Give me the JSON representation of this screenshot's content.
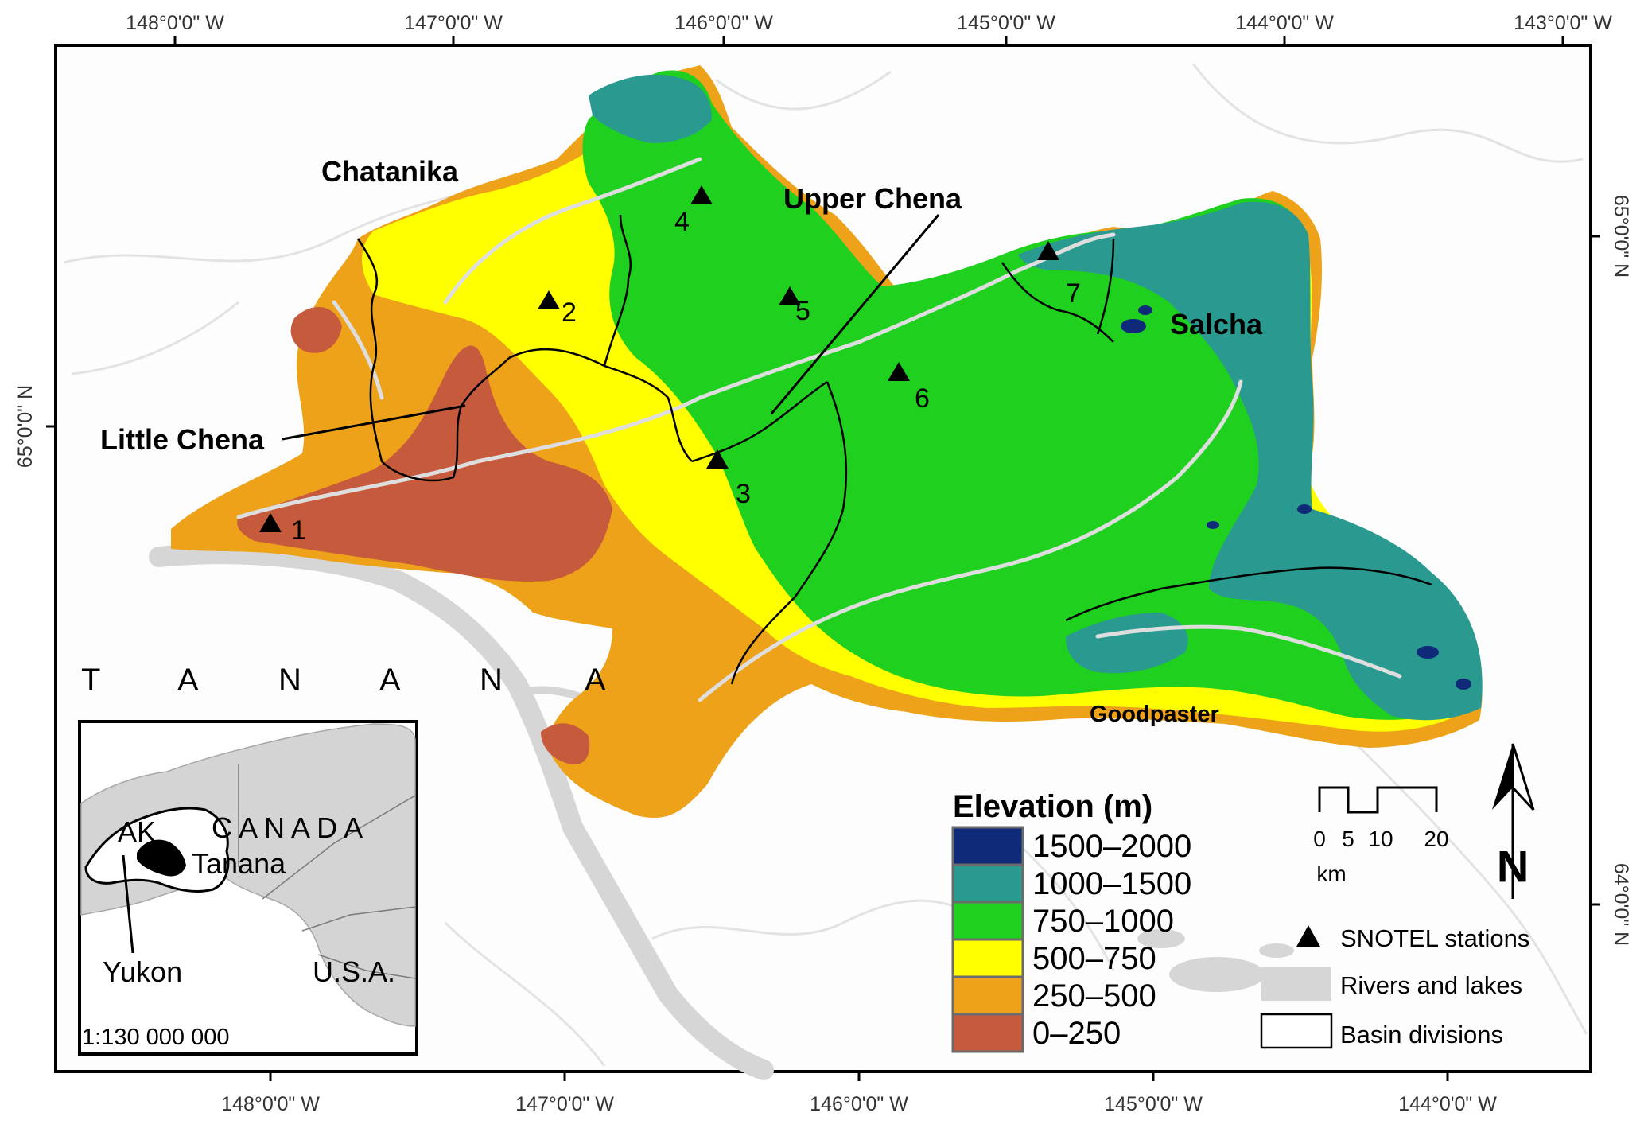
{
  "map": {
    "top_lon_labels": [
      "148°0'0\" W",
      "147°0'0\" W",
      "146°0'0\" W",
      "145°0'0\" W",
      "144°0'0\" W",
      "143°0'0\" W"
    ],
    "bottom_lon_labels": [
      "148°0'0\" W",
      "147°0'0\" W",
      "146°0'0\" W",
      "145°0'0\" W",
      "144°0'0\" W"
    ],
    "left_lat_labels": [
      "65°0'0\" N"
    ],
    "right_lat_labels": [
      "65°0'0\" N",
      "64°0'0\" N"
    ],
    "basins": {
      "chatanika": "Chatanika",
      "upper_chena": "Upper Chena",
      "little_chena": "Little Chena",
      "salcha": "Salcha",
      "goodpaster": "Goodpaster"
    },
    "river_label_letters": [
      "T",
      "A",
      "N",
      "A",
      "N",
      "A"
    ],
    "stations": [
      "1",
      "2",
      "3",
      "4",
      "5",
      "6",
      "7"
    ]
  },
  "legend": {
    "title": "Elevation (m)",
    "classes": [
      {
        "label": "1500–2000",
        "color": "#0f2a78"
      },
      {
        "label": "1000–1500",
        "color": "#2a9a90"
      },
      {
        "label": "750–1000",
        "color": "#1fd01f"
      },
      {
        "label": "500–750",
        "color": "#ffff00"
      },
      {
        "label": "250–500",
        "color": "#eda21a"
      },
      {
        "label": "0–250",
        "color": "#c65a3c"
      }
    ]
  },
  "key": {
    "stations": "SNOTEL stations",
    "rivers": "Rivers and lakes",
    "basins": "Basin divisions"
  },
  "scale_bar": {
    "ticks": [
      "0",
      "5",
      "10",
      "20"
    ],
    "unit": "km"
  },
  "north_arrow": {
    "label": "N"
  },
  "inset": {
    "ak": "AK",
    "canada": "C A N A D A",
    "tanana": "Tanana",
    "yukon": "Yukon",
    "usa": "U.S.A.",
    "scale": "1:130 000 000"
  }
}
